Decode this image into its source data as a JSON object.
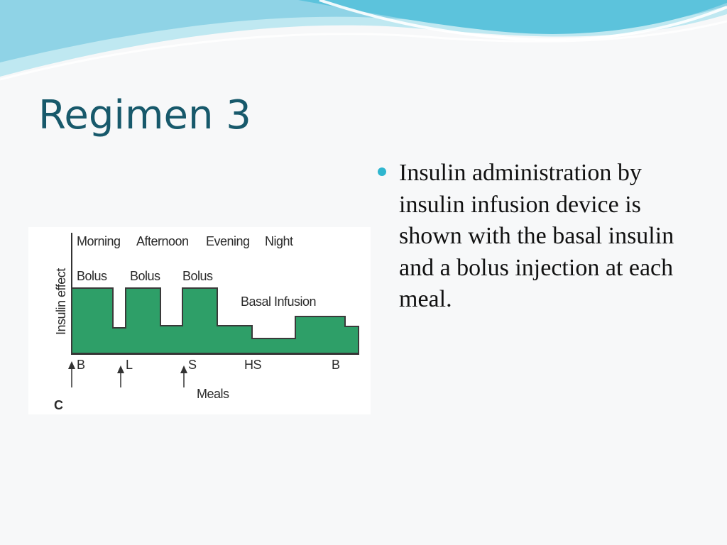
{
  "slide": {
    "title": "Regimen 3",
    "bullets": [
      "Insulin administration by insulin infusion device is shown with the basal insulin and a bolus injection at each meal."
    ]
  },
  "colors": {
    "title": "#17596b",
    "bullet": "#2fb6cf",
    "fill": "#2e9f68",
    "wave_light": "#a8e0ec",
    "wave_dark": "#5cc3dc"
  },
  "diagram": {
    "y_axis_label": "Insulin effect",
    "periods": [
      "Morning",
      "Afternoon",
      "Evening",
      "Night"
    ],
    "bolus_labels": [
      "Bolus",
      "Bolus",
      "Bolus"
    ],
    "basal_label": "Basal Infusion",
    "meal_markers": [
      "B",
      "L",
      "S",
      "HS",
      "B"
    ],
    "x_axis_label": "Meals",
    "panel_letter": "C"
  }
}
